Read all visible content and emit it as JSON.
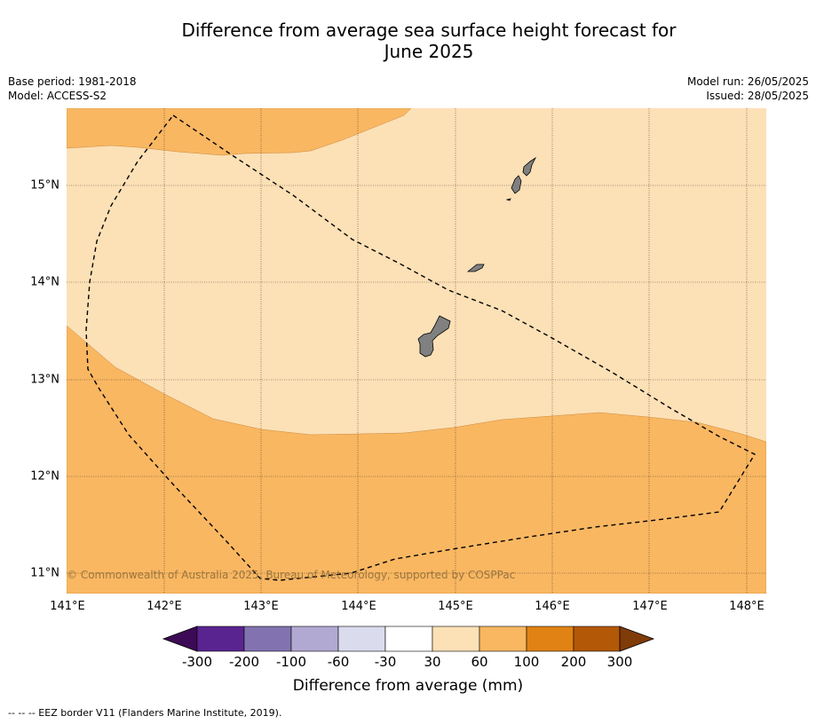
{
  "title_line1": "Difference from average sea surface height forecast for",
  "title_line2": "June 2025",
  "meta": {
    "base_period": "Base period: 1981-2018",
    "model": "Model: ACCESS-S2",
    "model_run": "Model run: 26/05/2025",
    "issued": "Issued: 28/05/2025"
  },
  "map": {
    "lon_labels": [
      "141°E",
      "142°E",
      "143°E",
      "144°E",
      "145°E",
      "146°E",
      "147°E",
      "148°E"
    ],
    "lat_labels": [
      "15°N",
      "14°N",
      "13°N",
      "12°N",
      "11°N"
    ],
    "copyright": "© Commonwealth of Australia 2025, Bureau of Meteorology, supported by COSPPac",
    "colors": {
      "band_30_60": "#fce0b6",
      "band_60_100": "#f9b762",
      "land": "#808080",
      "eez": "#000000"
    }
  },
  "colorbar": {
    "ticks": [
      "-300",
      "-200",
      "-100",
      "-60",
      "-30",
      "30",
      "60",
      "100",
      "200",
      "300"
    ],
    "colors": [
      "#3d0a55",
      "#5a2490",
      "#8273b0",
      "#b2a9d3",
      "#dadbed",
      "#ffffff",
      "#fce0b6",
      "#f9b762",
      "#e08214",
      "#b35806",
      "#7f3b08"
    ],
    "label": "Difference from average (mm)"
  },
  "footnote": "--  --  -- EEZ border V11 (Flanders Marine Institute, 2019)."
}
